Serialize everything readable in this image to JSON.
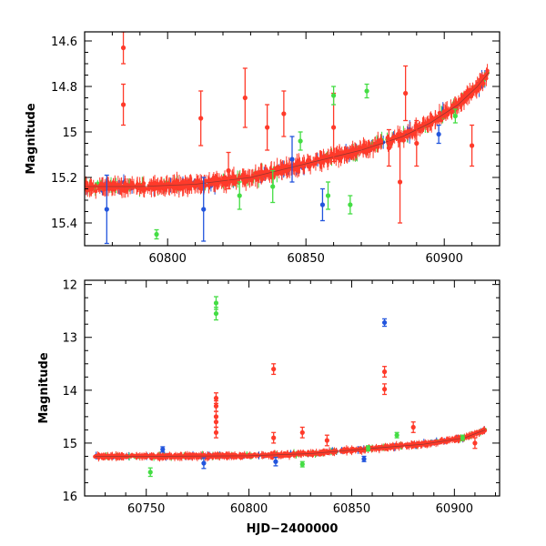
{
  "chart_data": [
    {
      "type": "scatter",
      "title": "",
      "xlabel": "",
      "ylabel": "Magnitude",
      "xlim": [
        60770,
        60920
      ],
      "ylim": [
        15.5,
        14.56
      ],
      "y_inverted": true,
      "error_bars": true,
      "x_ticks": [
        60800,
        60850,
        60900
      ],
      "x_tick_labels": [
        "60800",
        "60850",
        "60900"
      ],
      "y_ticks": [
        14.6,
        14.8,
        15,
        15.2,
        15.4
      ],
      "y_tick_labels": [
        "14.6",
        "14.8",
        "15",
        "15.2",
        "15.4"
      ],
      "trend": [
        {
          "x": 60770,
          "y": 15.24
        },
        {
          "x": 60790,
          "y": 15.24
        },
        {
          "x": 60810,
          "y": 15.23
        },
        {
          "x": 60830,
          "y": 15.2
        },
        {
          "x": 60850,
          "y": 15.14
        },
        {
          "x": 60870,
          "y": 15.08
        },
        {
          "x": 60885,
          "y": 15.02
        },
        {
          "x": 60895,
          "y": 14.96
        },
        {
          "x": 60905,
          "y": 14.88
        },
        {
          "x": 60912,
          "y": 14.8
        },
        {
          "x": 60916,
          "y": 14.74
        }
      ],
      "series": [
        {
          "color": "#ff3a2a",
          "points": [
            {
              "x": 60784,
              "y": 14.63,
              "err": 0.07
            },
            {
              "x": 60784,
              "y": 14.88,
              "err": 0.09
            },
            {
              "x": 60812,
              "y": 14.94,
              "err": 0.12
            },
            {
              "x": 60822,
              "y": 15.17,
              "err": 0.08
            },
            {
              "x": 60828,
              "y": 14.85,
              "err": 0.13
            },
            {
              "x": 60836,
              "y": 14.98,
              "err": 0.1
            },
            {
              "x": 60842,
              "y": 14.92,
              "err": 0.1
            },
            {
              "x": 60860,
              "y": 14.98,
              "err": 0.15
            },
            {
              "x": 60880,
              "y": 15.07,
              "err": 0.08
            },
            {
              "x": 60884,
              "y": 15.22,
              "err": 0.18
            },
            {
              "x": 60886,
              "y": 14.83,
              "err": 0.12
            },
            {
              "x": 60890,
              "y": 15.05,
              "err": 0.1
            },
            {
              "x": 60910,
              "y": 15.06,
              "err": 0.09
            }
          ]
        },
        {
          "color": "#44dd44",
          "points": [
            {
              "x": 60796,
              "y": 15.45,
              "err": 0.02
            },
            {
              "x": 60826,
              "y": 15.28,
              "err": 0.06
            },
            {
              "x": 60838,
              "y": 15.24,
              "err": 0.07
            },
            {
              "x": 60848,
              "y": 15.04,
              "err": 0.04
            },
            {
              "x": 60858,
              "y": 15.28,
              "err": 0.06
            },
            {
              "x": 60860,
              "y": 14.84,
              "err": 0.04
            },
            {
              "x": 60866,
              "y": 15.32,
              "err": 0.04
            },
            {
              "x": 60872,
              "y": 14.82,
              "err": 0.03
            },
            {
              "x": 60904,
              "y": 14.93,
              "err": 0.03
            }
          ]
        },
        {
          "color": "#2255dd",
          "points": [
            {
              "x": 60778,
              "y": 15.34,
              "err": 0.15
            },
            {
              "x": 60813,
              "y": 15.34,
              "err": 0.14
            },
            {
              "x": 60845,
              "y": 15.12,
              "err": 0.1
            },
            {
              "x": 60856,
              "y": 15.32,
              "err": 0.07
            },
            {
              "x": 60898,
              "y": 15.01,
              "err": 0.04
            }
          ]
        }
      ]
    },
    {
      "type": "scatter",
      "title": "",
      "xlabel": "HJD−2400000",
      "ylabel": "Magnitude",
      "xlim": [
        60720,
        60922
      ],
      "ylim": [
        16.0,
        11.92
      ],
      "y_inverted": true,
      "error_bars": true,
      "x_ticks": [
        60750,
        60800,
        60850,
        60900
      ],
      "x_tick_labels": [
        "60750",
        "60800",
        "60850",
        "60900"
      ],
      "y_ticks": [
        12,
        13,
        14,
        15,
        16
      ],
      "y_tick_labels": [
        "12",
        "13",
        "14",
        "15",
        "16"
      ],
      "trend": [
        {
          "x": 60725,
          "y": 15.25
        },
        {
          "x": 60760,
          "y": 15.25
        },
        {
          "x": 60800,
          "y": 15.24
        },
        {
          "x": 60830,
          "y": 15.2
        },
        {
          "x": 60860,
          "y": 15.1
        },
        {
          "x": 60885,
          "y": 15.02
        },
        {
          "x": 60905,
          "y": 14.9
        },
        {
          "x": 60915,
          "y": 14.75
        }
      ],
      "series": [
        {
          "color": "#ff3a2a",
          "points": [
            {
              "x": 60784,
              "y": 14.15,
              "err": 0.1
            },
            {
              "x": 60784,
              "y": 14.3,
              "err": 0.1
            },
            {
              "x": 60784,
              "y": 14.5,
              "err": 0.1
            },
            {
              "x": 60784,
              "y": 14.6,
              "err": 0.1
            },
            {
              "x": 60784,
              "y": 14.8,
              "err": 0.1
            },
            {
              "x": 60812,
              "y": 13.6,
              "err": 0.1
            },
            {
              "x": 60812,
              "y": 14.9,
              "err": 0.1
            },
            {
              "x": 60826,
              "y": 14.8,
              "err": 0.1
            },
            {
              "x": 60838,
              "y": 14.95,
              "err": 0.1
            },
            {
              "x": 60866,
              "y": 13.65,
              "err": 0.1
            },
            {
              "x": 60866,
              "y": 13.98,
              "err": 0.1
            },
            {
              "x": 60880,
              "y": 14.7,
              "err": 0.1
            },
            {
              "x": 60910,
              "y": 15.0,
              "err": 0.1
            }
          ]
        },
        {
          "color": "#44dd44",
          "points": [
            {
              "x": 60784,
              "y": 12.35,
              "err": 0.12
            },
            {
              "x": 60784,
              "y": 12.55,
              "err": 0.12
            },
            {
              "x": 60752,
              "y": 15.55,
              "err": 0.08
            },
            {
              "x": 60826,
              "y": 15.4,
              "err": 0.05
            },
            {
              "x": 60858,
              "y": 15.1,
              "err": 0.05
            },
            {
              "x": 60872,
              "y": 14.85,
              "err": 0.05
            },
            {
              "x": 60904,
              "y": 14.9,
              "err": 0.05
            }
          ]
        },
        {
          "color": "#2255dd",
          "points": [
            {
              "x": 60866,
              "y": 12.72,
              "err": 0.07
            },
            {
              "x": 60758,
              "y": 15.12,
              "err": 0.05
            },
            {
              "x": 60778,
              "y": 15.38,
              "err": 0.1
            },
            {
              "x": 60813,
              "y": 15.35,
              "err": 0.08
            },
            {
              "x": 60856,
              "y": 15.3,
              "err": 0.05
            }
          ]
        }
      ]
    }
  ]
}
